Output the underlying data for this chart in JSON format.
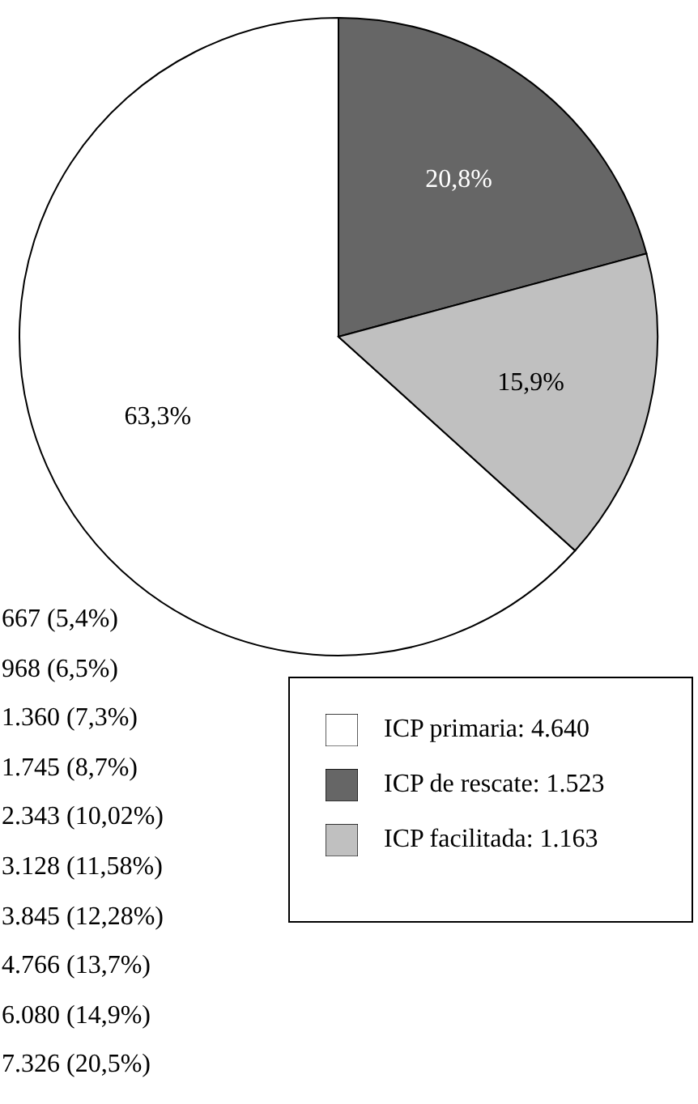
{
  "chart_data": {
    "type": "pie",
    "categories": [
      "ICP primaria: 4.640",
      "ICP de rescate: 1.523",
      "ICP facilitada: 1.163"
    ],
    "values": [
      63.3,
      20.8,
      15.9
    ],
    "colors": [
      "#ffffff",
      "#666666",
      "#c0c0c0"
    ],
    "value_labels": [
      "63,3%",
      "20,8%",
      "15,9%"
    ],
    "legend": "bottom right",
    "annotations": [
      "667 (5,4%)",
      "968 (6,5%)",
      "1.360 (7,3%)",
      "1.745 (8,7%)",
      "2.343 (10,02%)",
      "3.128 (11,58%)",
      "3.845 (12,28%)",
      "4.766 (13,7%)",
      "6.080 (14,9%)",
      "7.326 (20,5%)"
    ]
  }
}
